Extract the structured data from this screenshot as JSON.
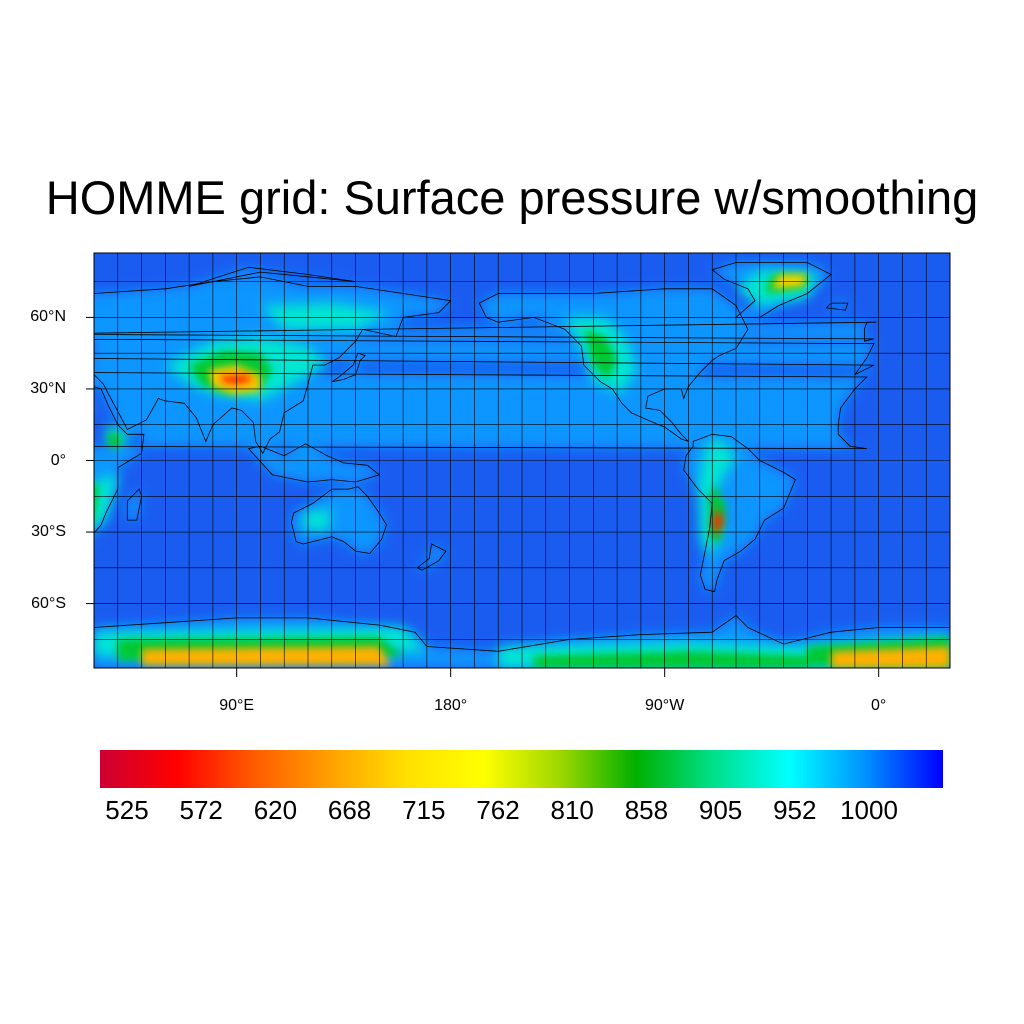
{
  "title": "HOMME grid: Surface pressure w/smoothing",
  "map": {
    "projection": "cylindrical-equidistant",
    "lon_range": [
      30,
      390
    ],
    "lat_range": [
      -87,
      87
    ],
    "lat_ticks": [
      {
        "value": 60,
        "label": "60°N"
      },
      {
        "value": 30,
        "label": "30°N"
      },
      {
        "value": 0,
        "label": "0°"
      },
      {
        "value": -30,
        "label": "30°S"
      },
      {
        "value": -60,
        "label": "60°S"
      }
    ],
    "lon_ticks": [
      {
        "value": 90,
        "label": "90°E"
      },
      {
        "value": 180,
        "label": "180°"
      },
      {
        "value": 270,
        "label": "90°W"
      },
      {
        "value": 360,
        "label": "0°"
      }
    ],
    "grid_lon_step": 10,
    "grid_lat_step": 15
  },
  "colorbar": {
    "labels": [
      "525",
      "572",
      "620",
      "668",
      "715",
      "762",
      "810",
      "858",
      "905",
      "952",
      "1000"
    ],
    "colors": [
      "#cc0033",
      "#ff0000",
      "#ff5a00",
      "#ffa000",
      "#ffe000",
      "#ffff00",
      "#9fd700",
      "#00b000",
      "#00e08a",
      "#00ffff",
      "#0090ff",
      "#0000ff"
    ]
  },
  "colors": {
    "ocean": "#1a5cf0",
    "land_low": "#0a96ff",
    "land_mid": "#00e6d2",
    "highland": "#00c832",
    "plateau": "#ffd200",
    "peak": "#ff2a00",
    "ice_sheet": "#ffb000"
  }
}
